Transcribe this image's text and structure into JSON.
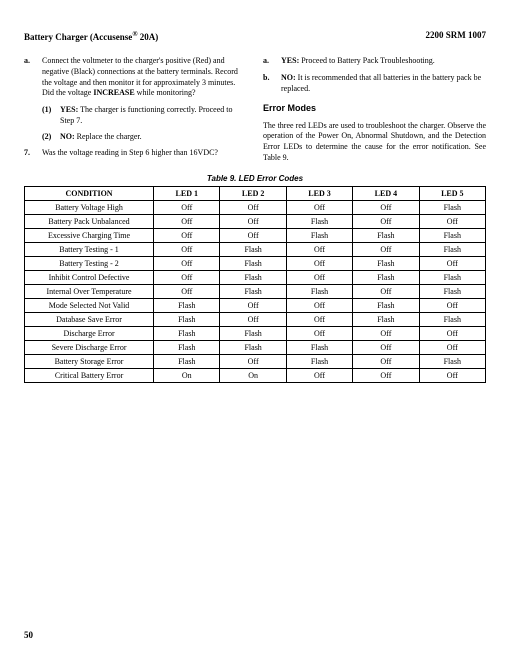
{
  "header": {
    "left_a": "Battery Charger (Accusense",
    "left_b": " 20A)",
    "right": "2200 SRM 1007"
  },
  "left": {
    "a": "Connect the voltmeter to the charger's positive (Red) and negative (Black) connections at the battery terminals. Record the voltage and then monitor it for approximately 3 minutes. Did the voltage ",
    "a_bold": "INCREASE",
    "a2": " while monitoring?",
    "s1_b": "YES:",
    "s1": " The charger is functioning correctly. Proceed to Step 7.",
    "s2_b": "NO:",
    "s2": " Replace the charger.",
    "q7": "Was the voltage reading in Step 6 higher than 16VDC?"
  },
  "right": {
    "ra_b": "YES:",
    "ra": " Proceed to Battery Pack Troubleshooting.",
    "rb_b": "NO:",
    "rb": " It is recommended that all batteries in the battery pack be replaced.",
    "h": "Error Modes",
    "p": "The three red LEDs are used to troubleshoot the charger. Observe the operation of the Power On, Abnormal Shutdown, and the Detection Error LEDs to determine the cause for the error notification. See Table 9."
  },
  "caption": "Table 9.  LED Error Codes",
  "th": [
    "CONDITION",
    "LED 1",
    "LED 2",
    "LED 3",
    "LED 4",
    "LED 5"
  ],
  "rows": [
    [
      "Battery Voltage High",
      "Off",
      "Off",
      "Off",
      "Off",
      "Flash"
    ],
    [
      "Battery Pack Unbalanced",
      "Off",
      "Off",
      "Flash",
      "Off",
      "Off"
    ],
    [
      "Excessive Charging Time",
      "Off",
      "Off",
      "Flash",
      "Flash",
      "Flash"
    ],
    [
      "Battery Testing - 1",
      "Off",
      "Flash",
      "Off",
      "Off",
      "Flash"
    ],
    [
      "Battery Testing - 2",
      "Off",
      "Flash",
      "Off",
      "Flash",
      "Off"
    ],
    [
      "Inhibit Control Defective",
      "Off",
      "Flash",
      "Off",
      "Flash",
      "Flash"
    ],
    [
      "Internal Over Temperature",
      "Off",
      "Flash",
      "Flash",
      "Off",
      "Flash"
    ],
    [
      "Mode Selected Not Valid",
      "Flash",
      "Off",
      "Off",
      "Flash",
      "Off"
    ],
    [
      "Database Save Error",
      "Flash",
      "Off",
      "Off",
      "Flash",
      "Flash"
    ],
    [
      "Discharge Error",
      "Flash",
      "Flash",
      "Off",
      "Off",
      "Off"
    ],
    [
      "Severe Discharge Error",
      "Flash",
      "Flash",
      "Flash",
      "Off",
      "Off"
    ],
    [
      "Battery Storage Error",
      "Flash",
      "Off",
      "Flash",
      "Off",
      "Flash"
    ],
    [
      "Critical Battery Error",
      "On",
      "On",
      "Off",
      "Off",
      "Off"
    ]
  ],
  "page": "50"
}
